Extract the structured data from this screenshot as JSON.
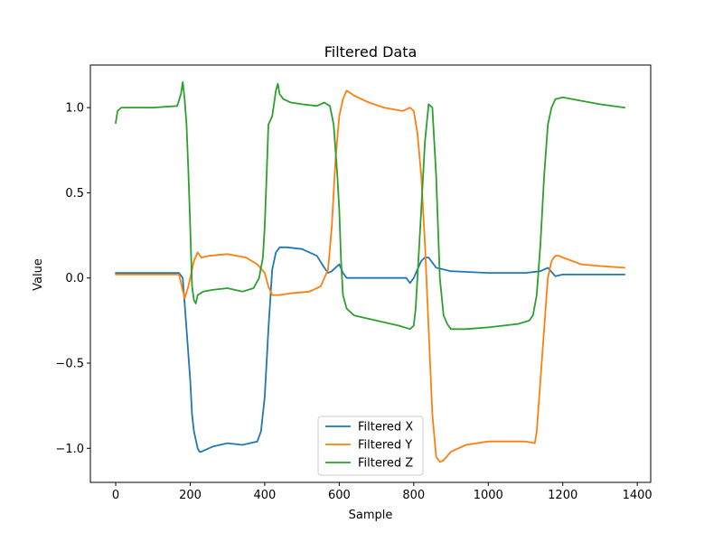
{
  "chart_data": {
    "type": "line",
    "title": "Filtered Data",
    "xlabel": "Sample",
    "ylabel": "Value",
    "xlim": [
      -68,
      1436
    ],
    "ylim": [
      -1.2,
      1.25
    ],
    "xticks": [
      0,
      200,
      400,
      600,
      800,
      1000,
      1200,
      1400
    ],
    "yticks": [
      -1.0,
      -0.5,
      0.0,
      0.5,
      1.0
    ],
    "xtick_labels": [
      "0",
      "200",
      "400",
      "600",
      "800",
      "1000",
      "1200",
      "1400"
    ],
    "ytick_labels": [
      "−1.0",
      "−0.5",
      "0.0",
      "0.5",
      "1.0"
    ],
    "grid": false,
    "legend_position": "bottom-center",
    "series": [
      {
        "name": "Filtered X",
        "color": "#1f77b4",
        "x": [
          0,
          100,
          170,
          180,
          190,
          200,
          205,
          210,
          220,
          225,
          230,
          240,
          260,
          300,
          340,
          380,
          390,
          400,
          410,
          420,
          430,
          440,
          460,
          500,
          540,
          560,
          570,
          580,
          600,
          610,
          620,
          640,
          700,
          780,
          790,
          800,
          810,
          820,
          830,
          840,
          860,
          900,
          1000,
          1100,
          1140,
          1160,
          1180,
          1200,
          1300,
          1366
        ],
        "y": [
          0.03,
          0.03,
          0.03,
          0.0,
          -0.3,
          -0.6,
          -0.8,
          -0.9,
          -1.0,
          -1.02,
          -1.02,
          -1.01,
          -0.99,
          -0.97,
          -0.98,
          -0.96,
          -0.9,
          -0.7,
          -0.3,
          0.05,
          0.15,
          0.18,
          0.18,
          0.17,
          0.13,
          0.06,
          0.03,
          0.04,
          0.08,
          0.03,
          0.0,
          0.0,
          0.0,
          0.0,
          -0.03,
          0.0,
          0.05,
          0.1,
          0.12,
          0.12,
          0.06,
          0.04,
          0.03,
          0.03,
          0.04,
          0.06,
          0.01,
          0.02,
          0.02,
          0.02
        ]
      },
      {
        "name": "Filtered Y",
        "color": "#ff7f0e",
        "x": [
          0,
          100,
          170,
          185,
          195,
          200,
          210,
          220,
          230,
          250,
          300,
          350,
          380,
          400,
          410,
          420,
          440,
          470,
          520,
          550,
          560,
          570,
          580,
          590,
          600,
          610,
          620,
          640,
          680,
          720,
          770,
          790,
          800,
          810,
          820,
          830,
          840,
          850,
          860,
          870,
          880,
          900,
          940,
          1000,
          1100,
          1125,
          1130,
          1140,
          1150,
          1160,
          1170,
          1180,
          1190,
          1200,
          1250,
          1300,
          1366
        ],
        "y": [
          0.02,
          0.02,
          0.02,
          -0.12,
          -0.05,
          0.0,
          0.1,
          0.15,
          0.12,
          0.13,
          0.14,
          0.12,
          0.08,
          0.03,
          -0.05,
          -0.1,
          -0.1,
          -0.09,
          -0.08,
          -0.05,
          0.0,
          0.05,
          0.3,
          0.7,
          0.95,
          1.05,
          1.1,
          1.07,
          1.03,
          1.0,
          0.98,
          1.0,
          0.98,
          0.85,
          0.6,
          0.2,
          -0.3,
          -0.8,
          -1.05,
          -1.08,
          -1.07,
          -1.02,
          -0.98,
          -0.96,
          -0.96,
          -0.97,
          -0.9,
          -0.6,
          -0.3,
          0.0,
          0.1,
          0.13,
          0.13,
          0.12,
          0.08,
          0.07,
          0.06
        ]
      },
      {
        "name": "Filtered Z",
        "color": "#2ca02c",
        "x": [
          0,
          5,
          15,
          40,
          100,
          165,
          175,
          180,
          185,
          190,
          195,
          200,
          205,
          210,
          215,
          220,
          235,
          260,
          300,
          340,
          370,
          385,
          395,
          400,
          405,
          410,
          420,
          430,
          435,
          440,
          450,
          470,
          500,
          540,
          560,
          575,
          585,
          595,
          600,
          605,
          610,
          620,
          640,
          700,
          760,
          790,
          800,
          805,
          810,
          820,
          830,
          840,
          850,
          860,
          870,
          880,
          890,
          900,
          940,
          1000,
          1080,
          1110,
          1120,
          1130,
          1140,
          1150,
          1160,
          1170,
          1180,
          1200,
          1250,
          1300,
          1366
        ],
        "y": [
          0.91,
          0.98,
          1.0,
          1.0,
          1.0,
          1.01,
          1.08,
          1.15,
          1.05,
          0.9,
          0.63,
          0.3,
          -0.05,
          -0.13,
          -0.15,
          -0.1,
          -0.08,
          -0.07,
          -0.06,
          -0.08,
          -0.06,
          0.0,
          0.12,
          0.3,
          0.6,
          0.9,
          0.95,
          1.1,
          1.14,
          1.08,
          1.05,
          1.03,
          1.02,
          1.01,
          1.03,
          1.01,
          0.9,
          0.6,
          0.4,
          0.1,
          -0.1,
          -0.18,
          -0.22,
          -0.25,
          -0.28,
          -0.3,
          -0.28,
          -0.18,
          0.0,
          0.4,
          0.8,
          1.02,
          1.0,
          0.6,
          0.0,
          -0.22,
          -0.27,
          -0.3,
          -0.3,
          -0.29,
          -0.27,
          -0.25,
          -0.22,
          -0.1,
          0.2,
          0.6,
          0.9,
          1.0,
          1.05,
          1.06,
          1.04,
          1.02,
          1.0
        ]
      }
    ]
  }
}
